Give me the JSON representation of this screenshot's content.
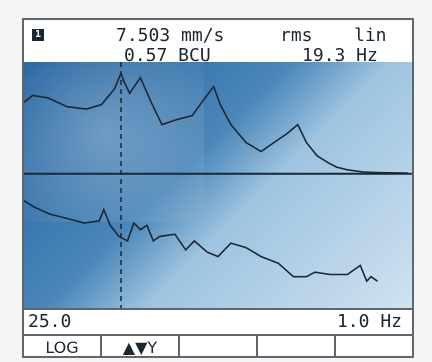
{
  "header": {
    "screen_number": "1",
    "value_label": "7.503 mm/s",
    "mode_label": "rms",
    "scale_label": "lin",
    "bcu_label": "0.57 BCU",
    "freq_label": "19.3 Hz"
  },
  "footer": {
    "left_value": "25.0",
    "right_value": "1.0 Hz"
  },
  "softkeys": [
    {
      "label": "LOG"
    },
    {
      "label": "▲▼Y"
    },
    {
      "label": ""
    },
    {
      "label": ""
    },
    {
      "label": ""
    }
  ],
  "colors": {
    "plot_dark": "#1e5f9d",
    "plot_light": "#cfe2f1",
    "trace": "#1b2733",
    "text": "#1b2733",
    "frame_border": "#5f6670"
  },
  "chart_data": {
    "type": "line",
    "series": [
      {
        "values": [
          [
            0,
            3.2
          ],
          [
            8,
            3.5
          ],
          [
            22,
            3.4
          ],
          [
            40,
            3.0
          ],
          [
            58,
            2.9
          ],
          [
            72,
            3.1
          ],
          [
            84,
            3.8
          ],
          [
            90,
            4.5
          ],
          [
            92,
            4.2
          ],
          [
            98,
            3.6
          ],
          [
            108,
            4.3
          ],
          [
            118,
            3.2
          ],
          [
            128,
            2.2
          ],
          [
            140,
            2.4
          ],
          [
            156,
            2.6
          ],
          [
            168,
            3.4
          ],
          [
            176,
            3.9
          ],
          [
            182,
            3.1
          ],
          [
            192,
            2.2
          ],
          [
            206,
            1.4
          ],
          [
            220,
            1.0
          ],
          [
            232,
            1.4
          ],
          [
            244,
            1.8
          ],
          [
            254,
            2.2
          ],
          [
            262,
            1.4
          ],
          [
            272,
            0.8
          ],
          [
            282,
            0.5
          ],
          [
            290,
            0.3
          ],
          [
            300,
            0.18
          ],
          [
            315,
            0.08
          ],
          [
            330,
            0.05
          ],
          [
            345,
            0.04
          ],
          [
            356,
            0.03
          ]
        ]
      },
      {
        "values": [
          [
            0,
            -1.2
          ],
          [
            10,
            -1.5
          ],
          [
            24,
            -1.8
          ],
          [
            40,
            -2.0
          ],
          [
            56,
            -2.2
          ],
          [
            70,
            -2.1
          ],
          [
            74,
            -1.6
          ],
          [
            80,
            -2.3
          ],
          [
            88,
            -2.8
          ],
          [
            96,
            -3.0
          ],
          [
            102,
            -2.2
          ],
          [
            108,
            -2.5
          ],
          [
            114,
            -2.3
          ],
          [
            120,
            -3.0
          ],
          [
            126,
            -2.8
          ],
          [
            140,
            -2.7
          ],
          [
            150,
            -3.4
          ],
          [
            158,
            -3.0
          ],
          [
            170,
            -3.5
          ],
          [
            180,
            -3.7
          ],
          [
            192,
            -3.1
          ],
          [
            206,
            -3.3
          ],
          [
            220,
            -3.7
          ],
          [
            236,
            -4.0
          ],
          [
            250,
            -4.6
          ],
          [
            262,
            -4.6
          ],
          [
            270,
            -4.4
          ],
          [
            284,
            -4.5
          ],
          [
            300,
            -4.5
          ],
          [
            312,
            -4.1
          ],
          [
            318,
            -4.8
          ],
          [
            322,
            -4.6
          ],
          [
            328,
            -4.8
          ]
        ]
      }
    ],
    "xlim": [
      0,
      360
    ],
    "ylim": [
      -6,
      5
    ],
    "cursor_x": 90
  }
}
